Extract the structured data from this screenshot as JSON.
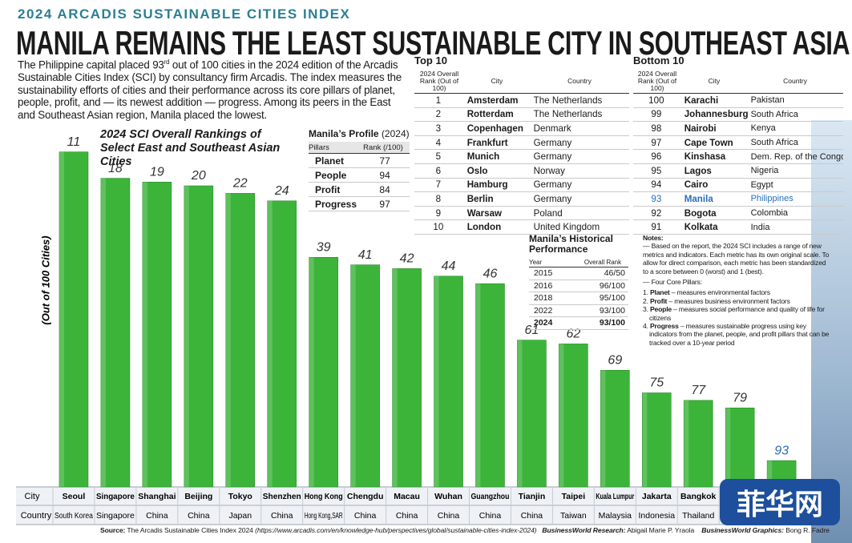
{
  "kicker": "2024 ARCADIS SUSTAINABLE CITIES INDEX",
  "headline": "MANILA REMAINS THE LEAST SUSTAINABLE CITY IN SOUTHEAST ASIA",
  "intro": {
    "before": "The Philippine capital placed 93",
    "sup": "rd",
    "after": " out of 100 cities in the 2024 edition of the Arcadis Sustainable Cities Index (SCI) by consultancy firm Arcadis. The index measures the sustainability efforts of cities and their performance across its core pillars of planet, people, profit, and — its newest addition — progress. Among its peers in the East and Southeast Asian region, Manila placed the lowest."
  },
  "chart_data": {
    "type": "bar",
    "title": "2024 SCI Overall Rankings of Select East and Southeast Asian Cities",
    "ylabel": "(Out of 100 Cities)",
    "categories": [
      "Seoul",
      "Singapore",
      "Shanghai",
      "Beijing",
      "Tokyo",
      "Shenzhen",
      "Hong Kong",
      "Chengdu",
      "Macau",
      "Wuhan",
      "Guangzhou",
      "Tianjin",
      "Taipei",
      "Kuala Lumpur",
      "Jakarta",
      "Bangkok",
      null,
      null
    ],
    "countries": [
      "South Korea",
      "Singapore",
      "China",
      "China",
      "Japan",
      "China",
      "Hong Kong,SAR",
      "China",
      "China",
      "China",
      "China",
      "China",
      "Taiwan",
      "Malaysia",
      "Indonesia",
      "Thailand",
      null,
      null
    ],
    "values": [
      11,
      18,
      19,
      20,
      22,
      24,
      39,
      41,
      42,
      44,
      46,
      61,
      62,
      69,
      75,
      77,
      79,
      93
    ],
    "color": "#3cb43a",
    "highlight": 17,
    "highlight_color": "#2a6ebb",
    "ylim": [
      100,
      0
    ],
    "row_labels": [
      "City",
      "Country"
    ]
  },
  "profile": {
    "title": "Manila’s Profile",
    "suffix": "(2024)",
    "columns": [
      "Pillars",
      "Rank (/100)"
    ],
    "rows": [
      [
        "Planet",
        "77"
      ],
      [
        "People",
        "94"
      ],
      [
        "Profit",
        "84"
      ],
      [
        "Progress",
        "97"
      ]
    ]
  },
  "top10": {
    "title": "Top 10",
    "columns": [
      "2024 Overall Rank (Out of 100)",
      "City",
      "Country"
    ],
    "rows": [
      [
        "1",
        "Amsterdam",
        "The Netherlands"
      ],
      [
        "2",
        "Rotterdam",
        "The Netherlands"
      ],
      [
        "3",
        "Copenhagen",
        "Denmark"
      ],
      [
        "4",
        "Frankfurt",
        "Germany"
      ],
      [
        "5",
        "Munich",
        "Germany"
      ],
      [
        "6",
        "Oslo",
        "Norway"
      ],
      [
        "7",
        "Hamburg",
        "Germany"
      ],
      [
        "8",
        "Berlin",
        "Germany"
      ],
      [
        "9",
        "Warsaw",
        "Poland"
      ],
      [
        "10",
        "London",
        "United Kingdom"
      ]
    ]
  },
  "bottom10": {
    "title": "Bottom 10",
    "columns": [
      "2024 Overall Rank (Out of 100)",
      "City",
      "Country"
    ],
    "highlight_row": 7,
    "rows": [
      [
        "100",
        "Karachi",
        "Pakistan"
      ],
      [
        "99",
        "Johannesburg",
        "South Africa"
      ],
      [
        "98",
        "Nairobi",
        "Kenya"
      ],
      [
        "97",
        "Cape Town",
        "South Africa"
      ],
      [
        "96",
        "Kinshasa",
        "Dem. Rep. of the Congo"
      ],
      [
        "95",
        "Lagos",
        "Nigeria"
      ],
      [
        "94",
        "Cairo",
        "Egypt"
      ],
      [
        "93",
        "Manila",
        "Philippines"
      ],
      [
        "92",
        "Bogota",
        "Colombia"
      ],
      [
        "91",
        "Kolkata",
        "India"
      ]
    ]
  },
  "history": {
    "title": "Manila’s Historical Performance",
    "columns": [
      "Year",
      "Overall Rank"
    ],
    "bold_row": 4,
    "rows": [
      [
        "2015",
        "46/50"
      ],
      [
        "2016",
        "96/100"
      ],
      [
        "2018",
        "95/100"
      ],
      [
        "2022",
        "93/100"
      ],
      [
        "2024",
        "93/100"
      ]
    ]
  },
  "notes": {
    "title": "Notes:",
    "lines": [
      "— Based on the report, the 2024 SCI includes a range of new metrics and indicators. Each metric has its own original scale. To allow for direct comparison, each metric has been standardized to a score between 0 (worst) and 1 (best).",
      "— Four Core Pillars:"
    ],
    "pillars": [
      {
        "num": "1.",
        "term": "Planet",
        "desc": " – measures environmental factors"
      },
      {
        "num": "2.",
        "term": "Profit",
        "desc": " – measures business environment factors"
      },
      {
        "num": "3.",
        "term": "People",
        "desc": " – measures social performance and quality of life for citizens"
      },
      {
        "num": "4.",
        "term": "Progress",
        "desc": " – measures sustainable progress using key indicators from the planet, people, and profit pillars that can be tracked over a 10-year period"
      }
    ]
  },
  "footer": {
    "source_label": "Source:",
    "source": " The Arcadis Sustainable Cities Index 2024 ",
    "url": "(https://www.arcadis.com/en/knowledge-hub/perspectives/global/sustainable-cities-index-2024)",
    "research_label": "BusinessWorld Research:",
    "research": " Abigail Marie P. Yraola",
    "graphics_label": "BusinessWorld Graphics:",
    "graphics": " Bong R. Fadre"
  },
  "watermark": "菲华网"
}
